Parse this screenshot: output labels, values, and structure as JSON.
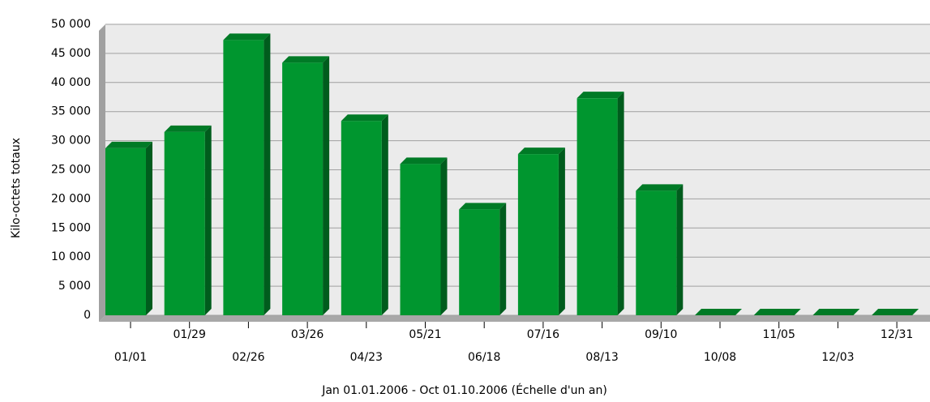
{
  "chart_data": {
    "type": "bar",
    "xlabel": "Jan 01.01.2006 - Oct 01.10.2006 (Échelle d'un an)",
    "ylabel": "Kilo-octets totaux",
    "categories": [
      "01/01",
      "01/29",
      "02/26",
      "03/26",
      "04/23",
      "05/21",
      "06/18",
      "07/16",
      "08/13",
      "09/10",
      "10/08",
      "11/05",
      "12/03",
      "12/31"
    ],
    "values": [
      28700,
      31500,
      47300,
      43400,
      33400,
      26000,
      18200,
      27700,
      37300,
      21400,
      0,
      0,
      0,
      0
    ],
    "color": "#00962f",
    "ylim": [
      0,
      50000
    ],
    "yticks": [
      0,
      {
        "value": 5000,
        "label": "5 000"
      },
      {
        "value": 10000,
        "label": "10 000"
      },
      {
        "value": 15000,
        "label": "15 000"
      },
      {
        "value": 20000,
        "label": "20 000"
      },
      {
        "value": 25000,
        "label": "25 000"
      },
      {
        "value": 30000,
        "label": "30 000"
      },
      {
        "value": 35000,
        "label": "35 000"
      },
      {
        "value": 40000,
        "label": "40 000"
      },
      {
        "value": 45000,
        "label": "45 000"
      },
      {
        "value": 50000,
        "label": "50 000"
      }
    ],
    "grid": true
  }
}
